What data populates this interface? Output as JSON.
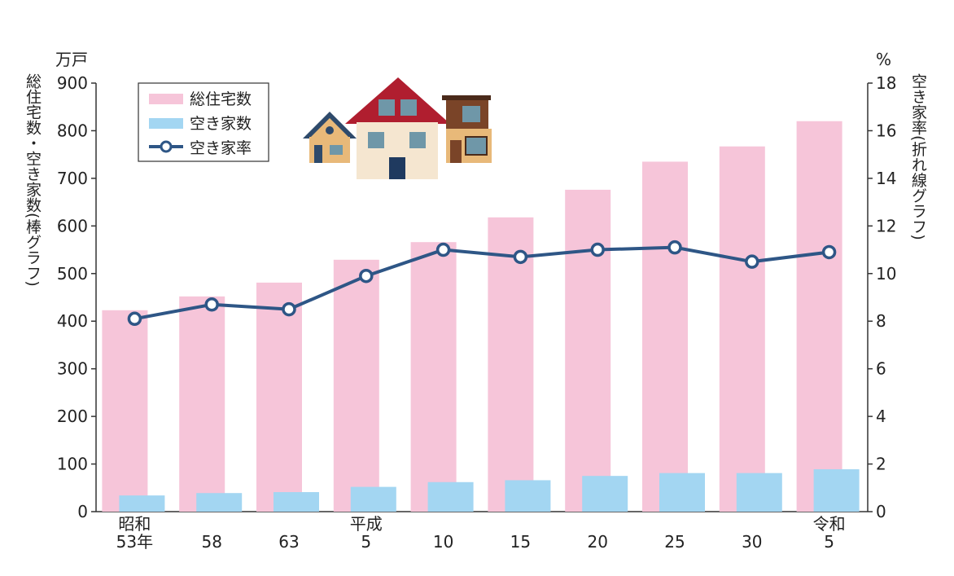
{
  "chart_data": {
    "type": "bar+line",
    "categories": [
      "昭和\n53年",
      "58",
      "63",
      "平成\n5",
      "10",
      "15",
      "20",
      "25",
      "30",
      "令和\n5"
    ],
    "series": [
      {
        "name": "総住宅数",
        "type": "bar",
        "axis": "left",
        "values": [
          423,
          452,
          481,
          529,
          566,
          618,
          676,
          735,
          767,
          820
        ]
      },
      {
        "name": "空き家数",
        "type": "bar",
        "axis": "left",
        "values": [
          34,
          39,
          41,
          52,
          62,
          66,
          75,
          81,
          81,
          89
        ]
      },
      {
        "name": "空き家率",
        "type": "line",
        "axis": "right",
        "values": [
          8.1,
          8.7,
          8.5,
          9.9,
          11.0,
          10.7,
          11.0,
          11.1,
          10.5,
          10.9
        ]
      }
    ],
    "y_left": {
      "unit": "万戸",
      "title": "総住宅数・空き家数(棒グラフ)",
      "ylim": [
        0,
        900
      ],
      "ticks": [
        "0",
        "100",
        "200",
        "300",
        "400",
        "500",
        "600",
        "700",
        "800",
        "900"
      ]
    },
    "y_right": {
      "unit": "%",
      "title": "空き家率(折れ線グラフ)",
      "ylim": [
        0,
        18
      ],
      "ticks": [
        "0",
        "2",
        "4",
        "6",
        "8",
        "10",
        "12",
        "14",
        "16",
        "18"
      ]
    },
    "legend_position": "top-left",
    "grid": false
  },
  "colors": {
    "total": "#f6c5d9",
    "vacant": "#a3d6f2",
    "rate": "#2e5686",
    "axis": "#333333"
  },
  "decoration": "houses-illustration"
}
